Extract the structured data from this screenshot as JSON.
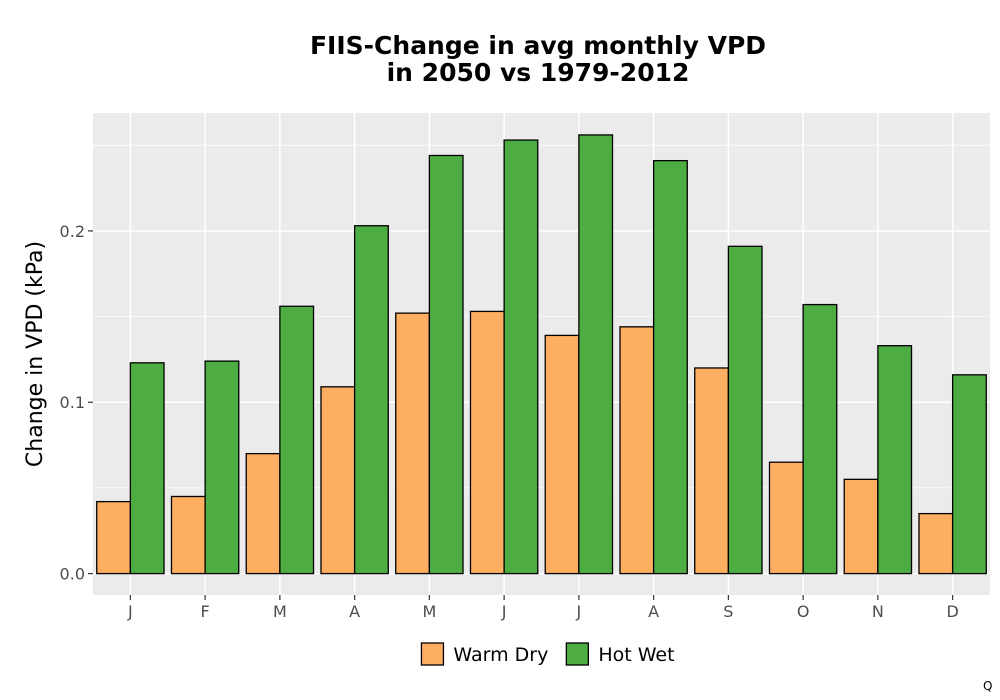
{
  "chart_data": {
    "type": "bar",
    "title_lines": [
      "FIIS-Change in avg monthly VPD",
      "in 2050 vs 1979-2012"
    ],
    "xlabel": "",
    "ylabel": "Change in VPD (kPa)",
    "categories": [
      "J",
      "F",
      "M",
      "A",
      "M",
      "J",
      "J",
      "A",
      "S",
      "O",
      "N",
      "D"
    ],
    "series": [
      {
        "name": "Warm Dry",
        "color": "#FDAE61",
        "values": [
          0.042,
          0.045,
          0.07,
          0.109,
          0.152,
          0.153,
          0.139,
          0.144,
          0.12,
          0.065,
          0.055,
          0.035
        ]
      },
      {
        "name": "Hot Wet",
        "color": "#4DAC42",
        "values": [
          0.123,
          0.124,
          0.156,
          0.203,
          0.244,
          0.253,
          0.256,
          0.241,
          0.191,
          0.157,
          0.133,
          0.116
        ]
      }
    ],
    "ylim": [
      -0.0125,
      0.2688
    ],
    "yticks": [
      0.0,
      0.1,
      0.2
    ],
    "ytick_labels": [
      "0.0",
      "0.1",
      "0.2"
    ],
    "grid": true,
    "legend_position": "bottom",
    "panel_background": "#EBEBEB",
    "grid_color": "#FFFFFF",
    "bar_border_color": "#000000"
  },
  "corner_mark": "Q"
}
